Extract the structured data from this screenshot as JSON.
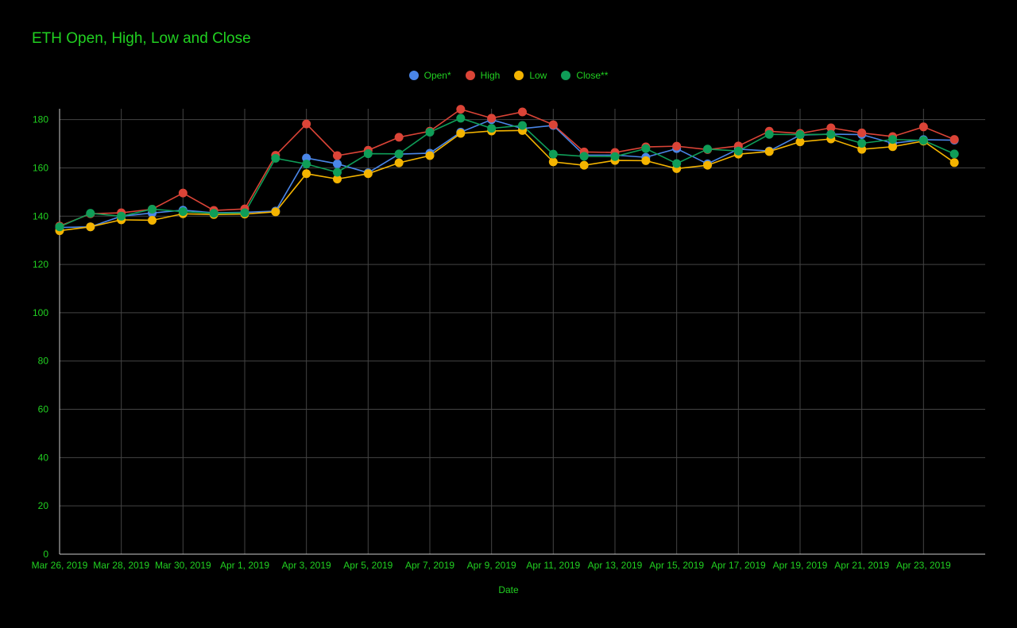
{
  "colors": {
    "background": "#000000",
    "text": "#21d021",
    "grid": "#444444",
    "axis": "#cccccc",
    "open": "#4a86e8",
    "high": "#db4437",
    "low": "#f4b400",
    "close": "#0f9d58"
  },
  "chart_data": {
    "type": "line",
    "title": "ETH Open, High, Low and Close",
    "xlabel": "Date",
    "ylabel": "",
    "ylim": [
      0,
      180
    ],
    "yticks": [
      0,
      20,
      40,
      60,
      80,
      100,
      120,
      140,
      160,
      180
    ],
    "legend_position": "top-center",
    "grid": true,
    "x": [
      "Mar 26, 2019",
      "Mar 27, 2019",
      "Mar 28, 2019",
      "Mar 29, 2019",
      "Mar 30, 2019",
      "Mar 31, 2019",
      "Apr 1, 2019",
      "Apr 2, 2019",
      "Apr 3, 2019",
      "Apr 4, 2019",
      "Apr 5, 2019",
      "Apr 6, 2019",
      "Apr 7, 2019",
      "Apr 8, 2019",
      "Apr 9, 2019",
      "Apr 10, 2019",
      "Apr 11, 2019",
      "Apr 12, 2019",
      "Apr 13, 2019",
      "Apr 14, 2019",
      "Apr 15, 2019",
      "Apr 16, 2019",
      "Apr 17, 2019",
      "Apr 18, 2019",
      "Apr 19, 2019",
      "Apr 20, 2019",
      "Apr 21, 2019",
      "Apr 22, 2019",
      "Apr 23, 2019",
      "Apr 24, 2019"
    ],
    "xtick_labels": [
      "Mar 26, 2019",
      "Mar 28, 2019",
      "Mar 30, 2019",
      "Apr 1, 2019",
      "Apr 3, 2019",
      "Apr 5, 2019",
      "Apr 7, 2019",
      "Apr 9, 2019",
      "Apr 11, 2019",
      "Apr 13, 2019",
      "Apr 15, 2019",
      "Apr 17, 2019",
      "Apr 19, 2019",
      "Apr 21, 2019",
      "Apr 23, 2019"
    ],
    "series": [
      {
        "name": "Open*",
        "color": "#4a86e8",
        "values": [
          135.3,
          135.6,
          140.0,
          141.3,
          142.5,
          141.4,
          141.6,
          142.1,
          164.1,
          161.7,
          158.0,
          165.7,
          166.1,
          174.8,
          180.0,
          176.3,
          177.6,
          165.3,
          165.3,
          164.4,
          168.0,
          161.7,
          167.8,
          167.0,
          173.6,
          174.0,
          173.8,
          170.2,
          171.7,
          171.5
        ]
      },
      {
        "name": "High",
        "color": "#db4437",
        "values": [
          135.9,
          141.0,
          141.4,
          142.9,
          149.6,
          142.4,
          143.0,
          165.2,
          178.2,
          165.1,
          167.3,
          172.7,
          175.2,
          184.3,
          180.6,
          183.2,
          177.9,
          166.6,
          166.4,
          168.7,
          169.0,
          167.6,
          169.1,
          175.2,
          174.3,
          176.6,
          174.5,
          173.0,
          177.0,
          171.8
        ]
      },
      {
        "name": "Low",
        "color": "#f4b400",
        "values": [
          134.0,
          135.6,
          138.5,
          138.3,
          141.0,
          140.7,
          140.9,
          141.8,
          157.6,
          155.4,
          157.6,
          162.1,
          165.1,
          174.3,
          175.3,
          175.5,
          162.5,
          161.1,
          163.1,
          163.0,
          159.7,
          161.1,
          165.7,
          166.8,
          170.8,
          172.0,
          167.7,
          168.8,
          171.1,
          162.2
        ]
      },
      {
        "name": "Close**",
        "color": "#0f9d58",
        "values": [
          135.6,
          141.2,
          140.0,
          142.9,
          141.9,
          141.2,
          141.4,
          164.0,
          161.6,
          158.2,
          165.9,
          165.8,
          174.8,
          180.6,
          176.4,
          177.6,
          165.7,
          164.8,
          164.7,
          168.0,
          161.8,
          167.8,
          167.0,
          173.9,
          173.8,
          173.9,
          170.2,
          171.8,
          171.4,
          165.8
        ]
      }
    ]
  }
}
